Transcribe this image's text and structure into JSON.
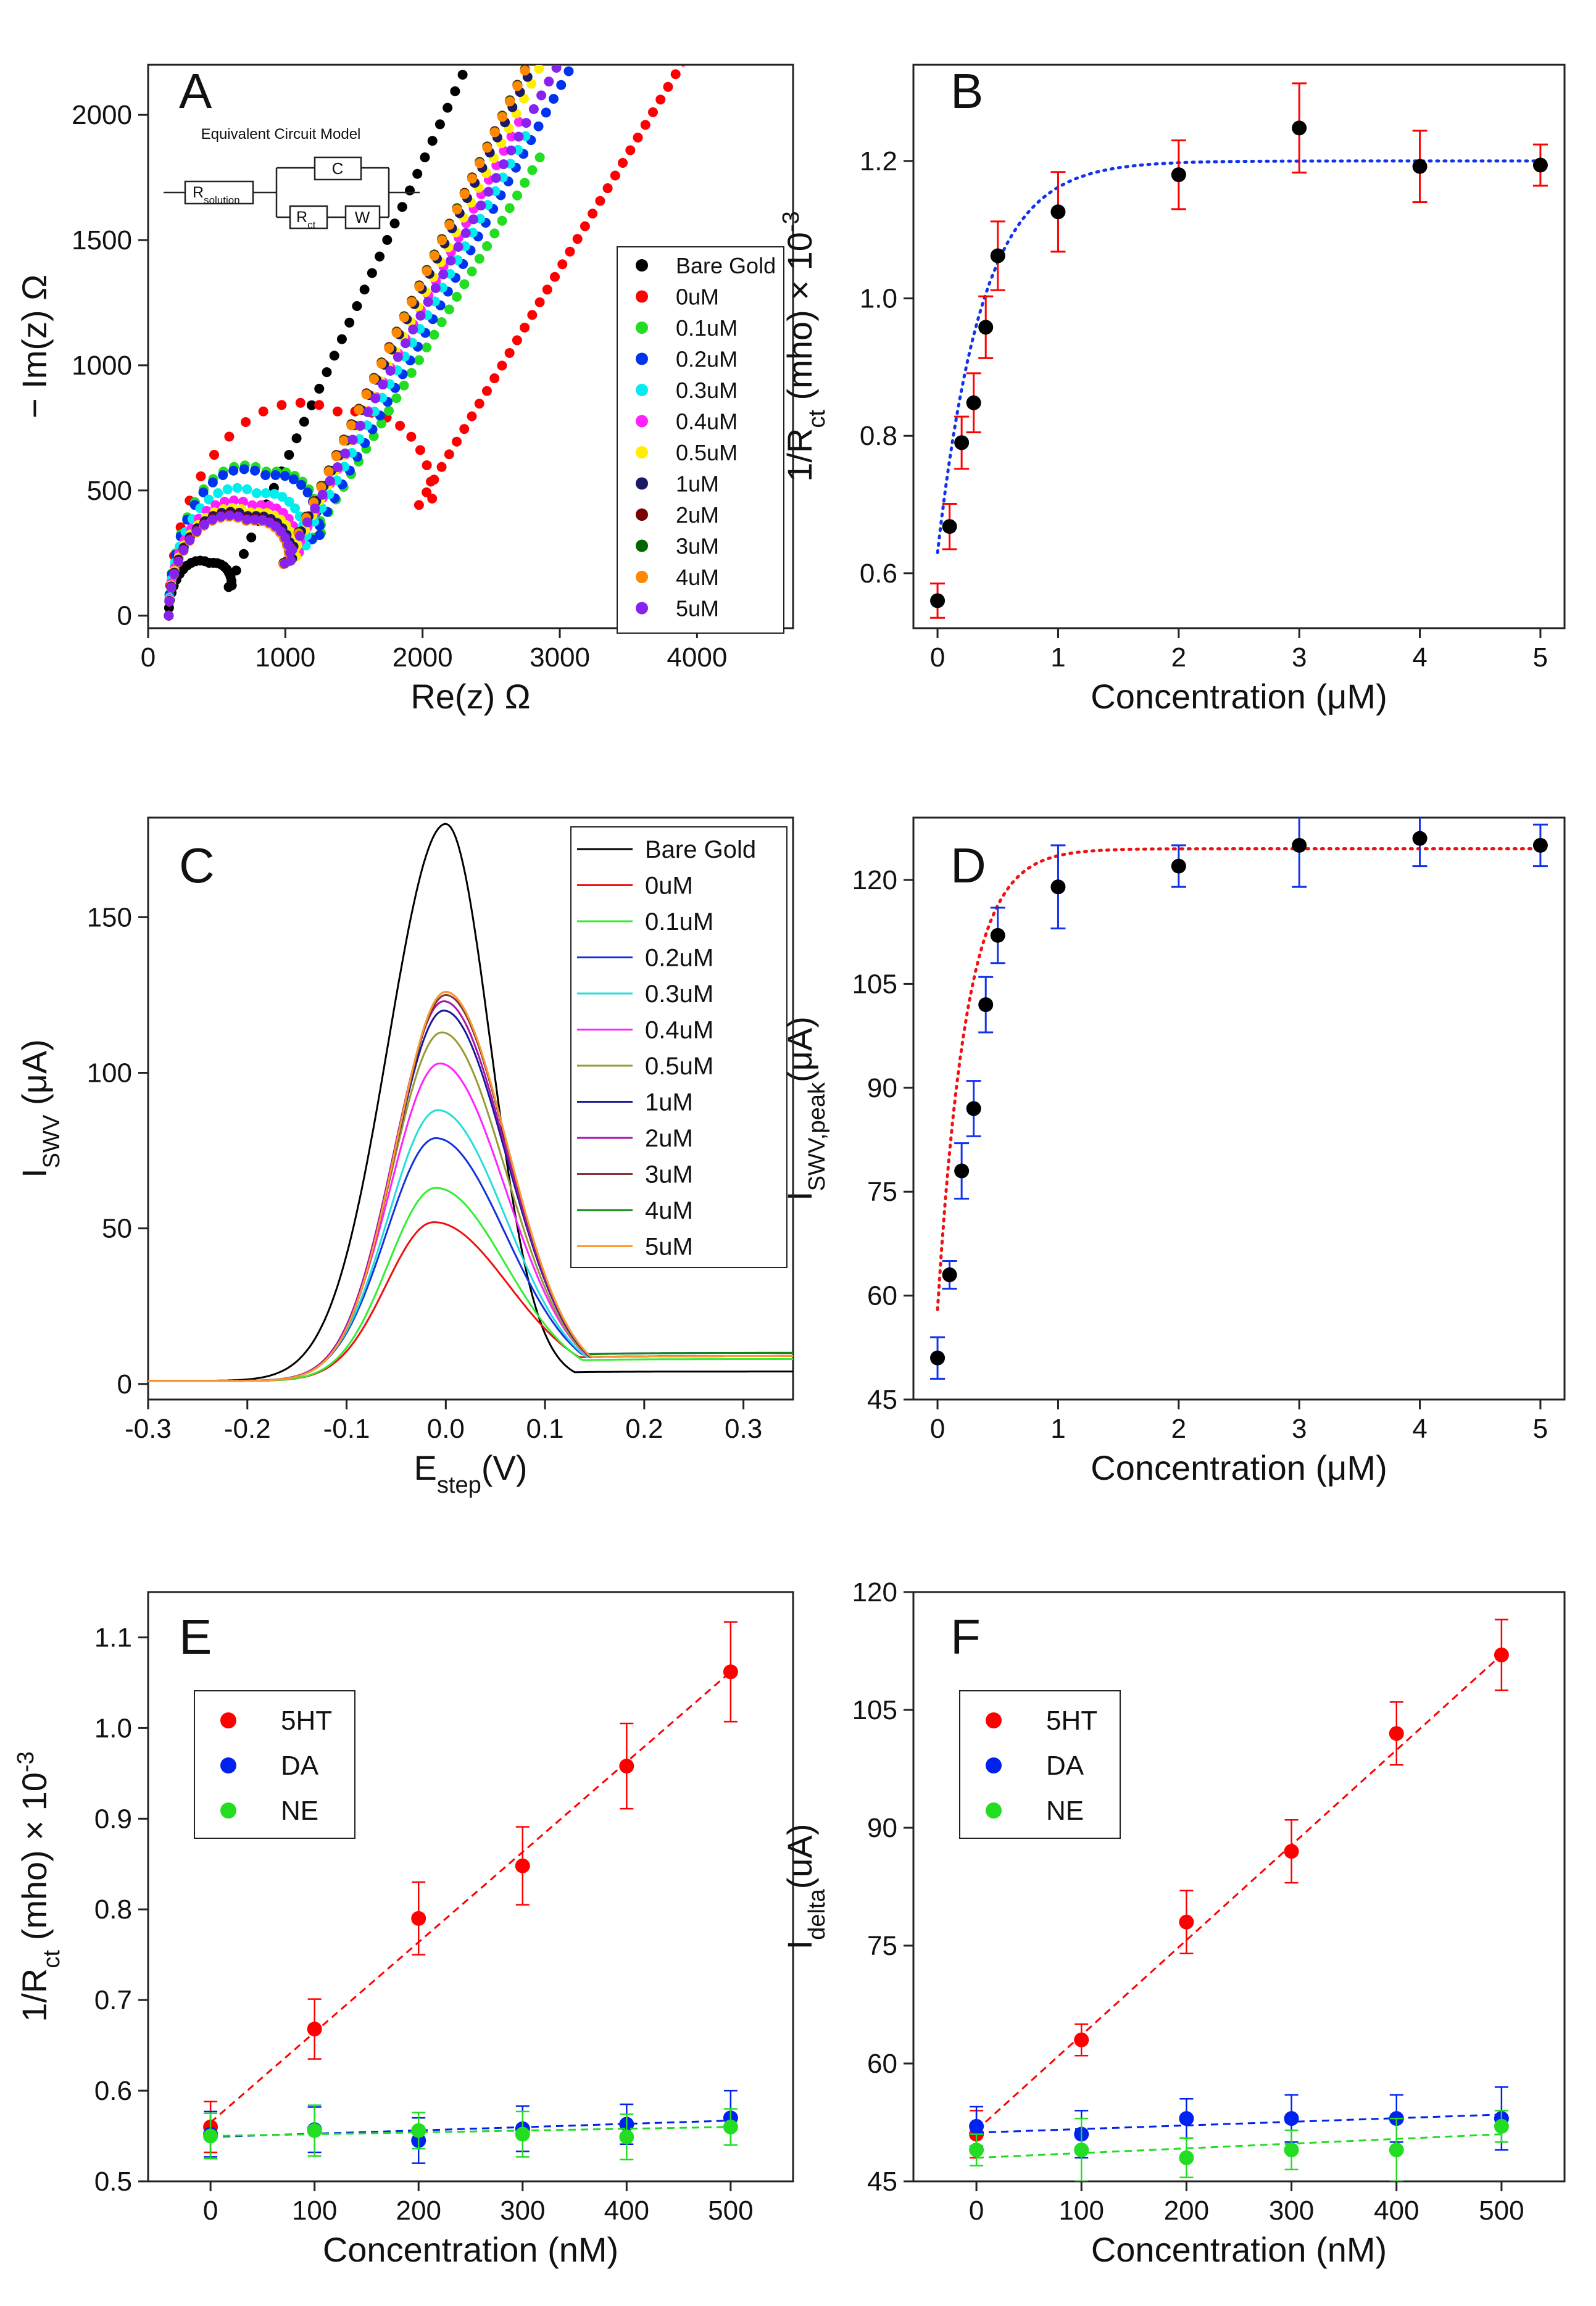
{
  "chart_data": [
    {
      "panel": "A",
      "type": "scatter",
      "title": "",
      "xlabel": "Re(z) Ω",
      "ylabel": "− Im(z) Ω",
      "xlim": [
        0,
        4700
      ],
      "ylim": [
        -50,
        2200
      ],
      "xticks": [
        0,
        1000,
        2000,
        3000,
        4000
      ],
      "yticks": [
        0,
        500,
        1000,
        1500,
        2000
      ],
      "circuit": {
        "title": "Equivalent Circuit Model",
        "r_solution": "R",
        "r_solution_sub": "solution",
        "c": "C",
        "r_ct": "R",
        "r_ct_sub": "ct",
        "w": "W"
      },
      "series": [
        {
          "name": "Bare Gold",
          "color": "#000000",
          "rs": 150,
          "d": 460,
          "ht": 220,
          "slope": 1.2,
          "xend": 2480
        },
        {
          "name": "0uM",
          "color": "#ff0000",
          "rs": 150,
          "d": 1920,
          "ht": 850,
          "slope": 0.92,
          "xend": 4050
        },
        {
          "name": "0.1uM",
          "color": "#22dd22",
          "rs": 150,
          "d": 1110,
          "ht": 600,
          "slope": 0.92,
          "xend": 2900
        },
        {
          "name": "0.2uM",
          "color": "#0033ee",
          "rs": 150,
          "d": 1100,
          "ht": 585,
          "slope": 1.0,
          "xend": 3550
        },
        {
          "name": "0.3uM",
          "color": "#00eeee",
          "rs": 150,
          "d": 1000,
          "ht": 510,
          "slope": 1.0,
          "xend": 2750
        },
        {
          "name": "0.4uM",
          "color": "#ff22ff",
          "rs": 150,
          "d": 950,
          "ht": 460,
          "slope": 1.05,
          "xend": 2750
        },
        {
          "name": "0.5uM",
          "color": "#ffee00",
          "rs": 150,
          "d": 930,
          "ht": 430,
          "slope": 1.08,
          "xend": 2900
        },
        {
          "name": "1uM",
          "color": "#1a1a66",
          "rs": 150,
          "d": 900,
          "ht": 415,
          "slope": 1.1,
          "xend": 2800
        },
        {
          "name": "2uM",
          "color": "#770000",
          "rs": 150,
          "d": 880,
          "ht": 405,
          "slope": 1.12,
          "xend": 2800
        },
        {
          "name": "3uM",
          "color": "#006600",
          "rs": 150,
          "d": 880,
          "ht": 400,
          "slope": 1.12,
          "xend": 2800
        },
        {
          "name": "4uM",
          "color": "#ff8800",
          "rs": 150,
          "d": 880,
          "ht": 395,
          "slope": 1.12,
          "xend": 2800
        },
        {
          "name": "5uM",
          "color": "#8822ee",
          "rs": 150,
          "d": 890,
          "ht": 400,
          "slope": 1.0,
          "xend": 3100
        }
      ]
    },
    {
      "panel": "B",
      "type": "scatter",
      "xlabel": "Concentration (μM)",
      "ylabel": "1/R",
      "ylabel_sub": "ct",
      "ylabel_post": " (mho) × 10",
      "ylabel_sup": "-3",
      "xlim": [
        -0.2,
        5.2
      ],
      "ylim": [
        0.52,
        1.34
      ],
      "xticks": [
        0,
        1,
        2,
        3,
        4,
        5
      ],
      "yticks": [
        0.6,
        0.8,
        1.0,
        1.2
      ],
      "ytick_labels": [
        "0.6",
        "0.8",
        "1.0",
        "1.2"
      ],
      "x": [
        0,
        0.1,
        0.2,
        0.3,
        0.4,
        0.5,
        1,
        2,
        3,
        4,
        5
      ],
      "y": [
        0.56,
        0.668,
        0.79,
        0.848,
        0.958,
        1.062,
        1.126,
        1.18,
        1.248,
        1.192,
        1.194
      ],
      "err": [
        0.025,
        0.033,
        0.038,
        0.043,
        0.045,
        0.05,
        0.058,
        0.05,
        0.065,
        0.052,
        0.03
      ],
      "marker_color": "#000000",
      "errorbar_color": "#ff0000",
      "fit": {
        "color": "#1133ee",
        "y0": 0.63,
        "ymax": 1.2,
        "k": 2.7,
        "xstart": 0,
        "xend": 5
      }
    },
    {
      "panel": "C",
      "type": "line",
      "xlabel": "E",
      "xlabel_sub": "step",
      "xlabel_post": "(V)",
      "ylabel": "I",
      "ylabel_sub": "SWV",
      "ylabel_post": " (μA)",
      "xlim": [
        -0.3,
        0.35
      ],
      "ylim": [
        -5,
        182
      ],
      "xticks": [
        -0.3,
        -0.2,
        -0.1,
        0.0,
        0.1,
        0.2,
        0.3
      ],
      "xtick_labels": [
        "-0.3",
        "-0.2",
        "-0.1",
        "0.0",
        "0.1",
        "0.2",
        "0.3"
      ],
      "yticks": [
        0,
        50,
        100,
        150
      ],
      "series": [
        {
          "name": "Bare Gold",
          "color": "#000000",
          "peak": 179,
          "center": 0.0,
          "sl": 0.058,
          "sr": 0.045,
          "tail": 3
        },
        {
          "name": "0uM",
          "color": "#ee1111",
          "peak": 51,
          "center": -0.012,
          "sl": 0.048,
          "sr": 0.075,
          "tail": 8
        },
        {
          "name": "0.1uM",
          "color": "#33ee33",
          "peak": 62,
          "center": -0.01,
          "sl": 0.048,
          "sr": 0.07,
          "tail": 7
        },
        {
          "name": "0.2uM",
          "color": "#1133dd",
          "peak": 78,
          "center": -0.01,
          "sl": 0.05,
          "sr": 0.07,
          "tail": 9
        },
        {
          "name": "0.3uM",
          "color": "#22dddd",
          "peak": 87,
          "center": -0.008,
          "sl": 0.05,
          "sr": 0.068,
          "tail": 8
        },
        {
          "name": "0.4uM",
          "color": "#ff22ff",
          "peak": 102,
          "center": -0.006,
          "sl": 0.05,
          "sr": 0.066,
          "tail": 8
        },
        {
          "name": "0.5uM",
          "color": "#999933",
          "peak": 112,
          "center": -0.004,
          "sl": 0.05,
          "sr": 0.064,
          "tail": 8
        },
        {
          "name": "1uM",
          "color": "#1a1a99",
          "peak": 119,
          "center": -0.002,
          "sl": 0.05,
          "sr": 0.063,
          "tail": 8
        },
        {
          "name": "2uM",
          "color": "#aa11aa",
          "peak": 122,
          "center": -0.002,
          "sl": 0.05,
          "sr": 0.063,
          "tail": 8
        },
        {
          "name": "3uM",
          "color": "#883333",
          "peak": 124,
          "center": 0.0,
          "sl": 0.05,
          "sr": 0.062,
          "tail": 8
        },
        {
          "name": "4uM",
          "color": "#118811",
          "peak": 125,
          "center": 0.0,
          "sl": 0.05,
          "sr": 0.062,
          "tail": 9
        },
        {
          "name": "5uM",
          "color": "#ff9933",
          "peak": 125,
          "center": 0.0,
          "sl": 0.05,
          "sr": 0.062,
          "tail": 8
        }
      ]
    },
    {
      "panel": "D",
      "type": "scatter",
      "xlabel": "Concentration (μM)",
      "ylabel": "I",
      "ylabel_sub": "SWV,peak",
      "ylabel_post": "(μA)",
      "xlim": [
        -0.2,
        5.2
      ],
      "ylim": [
        45,
        129
      ],
      "xticks": [
        0,
        1,
        2,
        3,
        4,
        5
      ],
      "yticks": [
        45,
        60,
        75,
        90,
        105,
        120
      ],
      "x": [
        0,
        0.1,
        0.2,
        0.3,
        0.4,
        0.5,
        1,
        2,
        3,
        4,
        5
      ],
      "y": [
        51,
        63,
        78,
        87,
        102,
        112,
        119,
        122,
        125,
        126,
        125
      ],
      "err": [
        3,
        2,
        4,
        4,
        4,
        4,
        6,
        3,
        6,
        4,
        3
      ],
      "marker_color": "#000000",
      "errorbar_color": "#1133ee",
      "fit": {
        "color": "#ee1111",
        "y0": 58,
        "ymax": 124.5,
        "k": 4.2,
        "xstart": 0,
        "xend": 5
      }
    },
    {
      "panel": "E",
      "type": "scatter",
      "xlabel": "Concentration (nM)",
      "ylabel": "1/R",
      "ylabel_sub": "ct",
      "ylabel_post": " (mho) × 10",
      "ylabel_sup": "-3",
      "xlim": [
        -60,
        560
      ],
      "ylim": [
        0.5,
        1.15
      ],
      "xticks": [
        0,
        100,
        200,
        300,
        400,
        500
      ],
      "yticks": [
        0.5,
        0.6,
        0.7,
        0.8,
        0.9,
        1.0,
        1.1
      ],
      "ytick_labels": [
        "0.5",
        "0.6",
        "0.7",
        "0.8",
        "0.9",
        "1.0",
        "1.1"
      ],
      "x": [
        0,
        100,
        200,
        300,
        400,
        500
      ],
      "series": [
        {
          "name": "5HT",
          "color": "#ff0000",
          "y": [
            0.56,
            0.668,
            0.79,
            0.848,
            0.958,
            1.062
          ],
          "err": [
            0.028,
            0.033,
            0.04,
            0.043,
            0.047,
            0.055
          ],
          "fit": [
            0.565,
            1.062
          ]
        },
        {
          "name": "DA",
          "color": "#0022ee",
          "y": [
            0.552,
            0.557,
            0.545,
            0.558,
            0.563,
            0.57
          ],
          "err": [
            0.025,
            0.025,
            0.025,
            0.025,
            0.022,
            0.03
          ],
          "fit": [
            0.549,
            0.567
          ]
        },
        {
          "name": "NE",
          "color": "#22dd22",
          "y": [
            0.55,
            0.556,
            0.556,
            0.552,
            0.549,
            0.56
          ],
          "err": [
            0.025,
            0.028,
            0.02,
            0.025,
            0.025,
            0.02
          ],
          "fit": [
            0.55,
            0.56
          ]
        }
      ]
    },
    {
      "panel": "F",
      "type": "scatter",
      "xlabel": "Concentration (nM)",
      "ylabel": "I",
      "ylabel_sub": "delta",
      "ylabel_post": "(uA)",
      "xlim": [
        -60,
        560
      ],
      "ylim": [
        45,
        120
      ],
      "xticks": [
        0,
        100,
        200,
        300,
        400,
        500
      ],
      "yticks": [
        45,
        60,
        75,
        90,
        105,
        120
      ],
      "x": [
        0,
        100,
        200,
        300,
        400,
        500
      ],
      "series": [
        {
          "name": "5HT",
          "color": "#ff0000",
          "y": [
            51,
            63,
            78,
            87,
            102,
            112
          ],
          "err": [
            3,
            2,
            4,
            4,
            4,
            4.5
          ],
          "fit": [
            51.5,
            112
          ]
        },
        {
          "name": "DA",
          "color": "#0022ee",
          "y": [
            52,
            51,
            53,
            53,
            53,
            53
          ],
          "err": [
            2.5,
            3,
            2.5,
            3,
            3,
            4
          ],
          "fit": [
            51.2,
            53.5
          ]
        },
        {
          "name": "NE",
          "color": "#22dd22",
          "y": [
            49,
            49,
            48,
            49,
            49,
            52
          ],
          "err": [
            2,
            4,
            2.5,
            2.5,
            4,
            2
          ],
          "fit": [
            48,
            51
          ]
        }
      ]
    }
  ]
}
